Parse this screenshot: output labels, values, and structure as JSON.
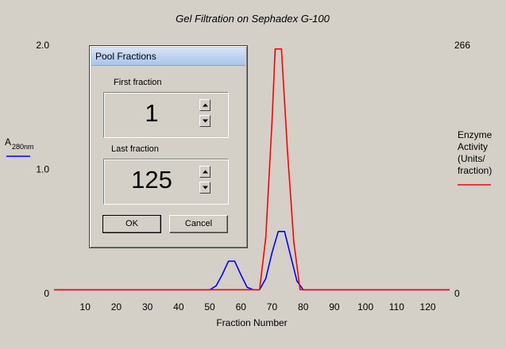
{
  "chart_data": {
    "type": "line",
    "title": "Gel Filtration on Sephadex G-100",
    "xlabel": "Fraction Number",
    "ylabel": "A",
    "ylabel_sub": "280nm",
    "y2label": [
      "Enzyme",
      "Activity",
      "(Units/",
      "fraction)"
    ],
    "xlim": [
      0,
      127
    ],
    "ylim": [
      0,
      2.0
    ],
    "y2lim": [
      0,
      266
    ],
    "x_ticks": [
      10,
      20,
      30,
      40,
      50,
      60,
      70,
      80,
      90,
      100,
      110,
      120
    ],
    "y_ticks": [
      "0",
      "1.0",
      "2.0"
    ],
    "y2_ticks": [
      "0",
      "266"
    ],
    "series": [
      {
        "name": "A 280nm",
        "color": "#0000ff",
        "axis": "left",
        "x": [
          0,
          50,
          52,
          54,
          56,
          58,
          60,
          62,
          64,
          66,
          68,
          70,
          72,
          74,
          76,
          78,
          80,
          127
        ],
        "y": [
          0.03,
          0.03,
          0.06,
          0.15,
          0.26,
          0.26,
          0.15,
          0.05,
          0.03,
          0.03,
          0.12,
          0.33,
          0.5,
          0.5,
          0.3,
          0.1,
          0.03,
          0.03
        ]
      },
      {
        "name": "Enzyme Activity (Units/fraction)",
        "color": "#ff0000",
        "axis": "right",
        "x": [
          0,
          66,
          68,
          70,
          71,
          73,
          75,
          77,
          79,
          127
        ],
        "y": [
          4,
          4,
          60,
          185,
          262,
          262,
          150,
          55,
          4,
          4
        ]
      }
    ]
  },
  "dialog": {
    "title": "Pool Fractions",
    "first_label": "First fraction",
    "first_value": "1",
    "last_label": "Last fraction",
    "last_value": "125",
    "ok_label": "OK",
    "cancel_label": "Cancel"
  },
  "icons": {
    "spin_up": "up-arrow-icon",
    "spin_down": "down-arrow-icon"
  }
}
